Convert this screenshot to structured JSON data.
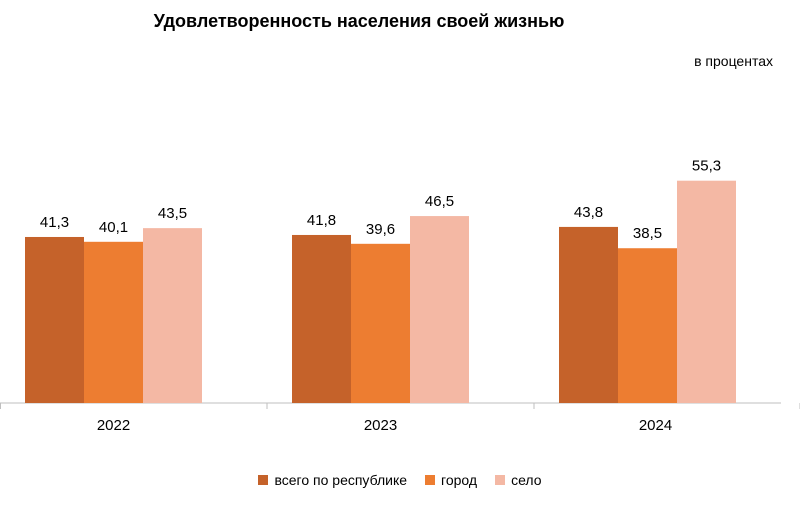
{
  "chart_data": {
    "type": "bar",
    "title": "Удовлетворенность населения своей жизнью",
    "unit_label": "в процентах",
    "categories": [
      "2022",
      "2023",
      "2024"
    ],
    "series": [
      {
        "name": "всего по республике",
        "color": "#c5622a",
        "values": [
          41.3,
          41.8,
          43.8
        ],
        "labels": [
          "41,3",
          "41,8",
          "43,8"
        ]
      },
      {
        "name": "город",
        "color": "#ed7d31",
        "values": [
          40.1,
          39.6,
          38.5
        ],
        "labels": [
          "40,1",
          "39,6",
          "38,5"
        ]
      },
      {
        "name": "село",
        "color": "#f4b8a4",
        "values": [
          43.5,
          46.5,
          55.3
        ],
        "labels": [
          "43,5",
          "46,5",
          "55,3"
        ]
      }
    ],
    "ylim": [
      0,
      70
    ],
    "grid": false,
    "legend_position": "bottom"
  }
}
